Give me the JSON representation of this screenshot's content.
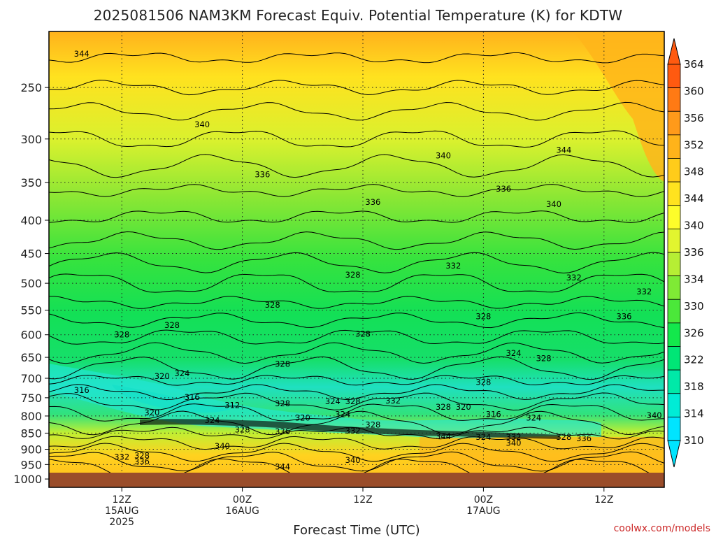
{
  "title": "2025081506 NAM3KM Forecast Equiv. Potential Temperature (K) for KDTW",
  "credit": "coolwx.com/models",
  "colors": {
    "ground": "#9a4d2a",
    "scale": [
      "#00e4ff",
      "#00ecd6",
      "#00e9a8",
      "#00e676",
      "#13e84c",
      "#4be83a",
      "#7fea35",
      "#b6ee34",
      "#e2f52f",
      "#fdfd2a",
      "#ffe31f",
      "#ffcc1a",
      "#ffb31a",
      "#ff9a1a",
      "#ff7a14",
      "#ff5a10"
    ]
  },
  "chart_data": {
    "type": "heatmap",
    "title": "2025081506 NAM3KM Forecast Equiv. Potential Temperature (K) for KDTW",
    "xlabel": "Forecast Time (UTC)",
    "ylabel": "",
    "y_scale": "log-pressure (inverted)",
    "ylim_hPa": [
      1000,
      200
    ],
    "y_ticks": [
      "250",
      "300",
      "350",
      "400",
      "450",
      "500",
      "550",
      "600",
      "650",
      "700",
      "750",
      "800",
      "850",
      "900",
      "950",
      "1000"
    ],
    "x_ticks": [
      {
        "line1": "12Z",
        "line2": "15AUG",
        "line3": "2025",
        "hour": 6
      },
      {
        "line1": "00Z",
        "line2": "16AUG",
        "line3": "",
        "hour": 18
      },
      {
        "line1": "12Z",
        "line2": "",
        "line3": "",
        "hour": 30
      },
      {
        "line1": "00Z",
        "line2": "17AUG",
        "line3": "",
        "hour": 42
      },
      {
        "line1": "12Z",
        "line2": "",
        "line3": "",
        "hour": 54
      }
    ],
    "x_range_hours": [
      0,
      60
    ],
    "colorbar": {
      "units": "K",
      "ticks": [
        "310",
        "314",
        "318",
        "322",
        "326",
        "330",
        "334",
        "336",
        "340",
        "344",
        "348",
        "352",
        "356",
        "360",
        "364"
      ]
    },
    "contour_labels": [
      {
        "text": "344",
        "hour": 2,
        "p": 222
      },
      {
        "text": "340",
        "hour": 14,
        "p": 285
      },
      {
        "text": "336",
        "hour": 20,
        "p": 340
      },
      {
        "text": "340",
        "hour": 38,
        "p": 318
      },
      {
        "text": "336",
        "hour": 31,
        "p": 375
      },
      {
        "text": "344",
        "hour": 50,
        "p": 312
      },
      {
        "text": "336",
        "hour": 44,
        "p": 358
      },
      {
        "text": "340",
        "hour": 49,
        "p": 378
      },
      {
        "text": "332",
        "hour": 39,
        "p": 470
      },
      {
        "text": "328",
        "hour": 29,
        "p": 485
      },
      {
        "text": "328",
        "hour": 21,
        "p": 540
      },
      {
        "text": "328",
        "hour": 11,
        "p": 580
      },
      {
        "text": "328",
        "hour": 6,
        "p": 600
      },
      {
        "text": "328",
        "hour": 30,
        "p": 598
      },
      {
        "text": "328",
        "hour": 42,
        "p": 562
      },
      {
        "text": "332",
        "hour": 51,
        "p": 490
      },
      {
        "text": "332",
        "hour": 58,
        "p": 515
      },
      {
        "text": "336",
        "hour": 56,
        "p": 562
      },
      {
        "text": "324",
        "hour": 45,
        "p": 640
      },
      {
        "text": "328",
        "hour": 48,
        "p": 652
      },
      {
        "text": "328",
        "hour": 22,
        "p": 665
      },
      {
        "text": "328",
        "hour": 42,
        "p": 710
      },
      {
        "text": "320",
        "hour": 10,
        "p": 695
      },
      {
        "text": "324",
        "hour": 12,
        "p": 688
      },
      {
        "text": "316",
        "hour": 2,
        "p": 730
      },
      {
        "text": "316",
        "hour": 13,
        "p": 748
      },
      {
        "text": "312",
        "hour": 17,
        "p": 770
      },
      {
        "text": "328",
        "hour": 22,
        "p": 765
      },
      {
        "text": "324",
        "hour": 27,
        "p": 760
      },
      {
        "text": "328",
        "hour": 29,
        "p": 760
      },
      {
        "text": "332",
        "hour": 33,
        "p": 758
      },
      {
        "text": "328",
        "hour": 38,
        "p": 775
      },
      {
        "text": "320",
        "hour": 40,
        "p": 775
      },
      {
        "text": "316",
        "hour": 43,
        "p": 795
      },
      {
        "text": "324",
        "hour": 47,
        "p": 805
      },
      {
        "text": "320",
        "hour": 9,
        "p": 790
      },
      {
        "text": "324",
        "hour": 15,
        "p": 812
      },
      {
        "text": "320",
        "hour": 24,
        "p": 805
      },
      {
        "text": "324",
        "hour": 28,
        "p": 795
      },
      {
        "text": "328",
        "hour": 31,
        "p": 825
      },
      {
        "text": "328",
        "hour": 18,
        "p": 840
      },
      {
        "text": "336",
        "hour": 22,
        "p": 845
      },
      {
        "text": "332",
        "hour": 29,
        "p": 843
      },
      {
        "text": "344",
        "hour": 38,
        "p": 860
      },
      {
        "text": "324",
        "hour": 42,
        "p": 862
      },
      {
        "text": "332",
        "hour": 45,
        "p": 862
      },
      {
        "text": "328",
        "hour": 50,
        "p": 862
      },
      {
        "text": "336",
        "hour": 52,
        "p": 866
      },
      {
        "text": "340",
        "hour": 45,
        "p": 880
      },
      {
        "text": "340",
        "hour": 16,
        "p": 890
      },
      {
        "text": "332",
        "hour": 6,
        "p": 925
      },
      {
        "text": "328",
        "hour": 8,
        "p": 920
      },
      {
        "text": "336",
        "hour": 8,
        "p": 940
      },
      {
        "text": "340",
        "hour": 29,
        "p": 935
      },
      {
        "text": "344",
        "hour": 22,
        "p": 958
      },
      {
        "text": "340",
        "hour": 59,
        "p": 798
      }
    ]
  }
}
